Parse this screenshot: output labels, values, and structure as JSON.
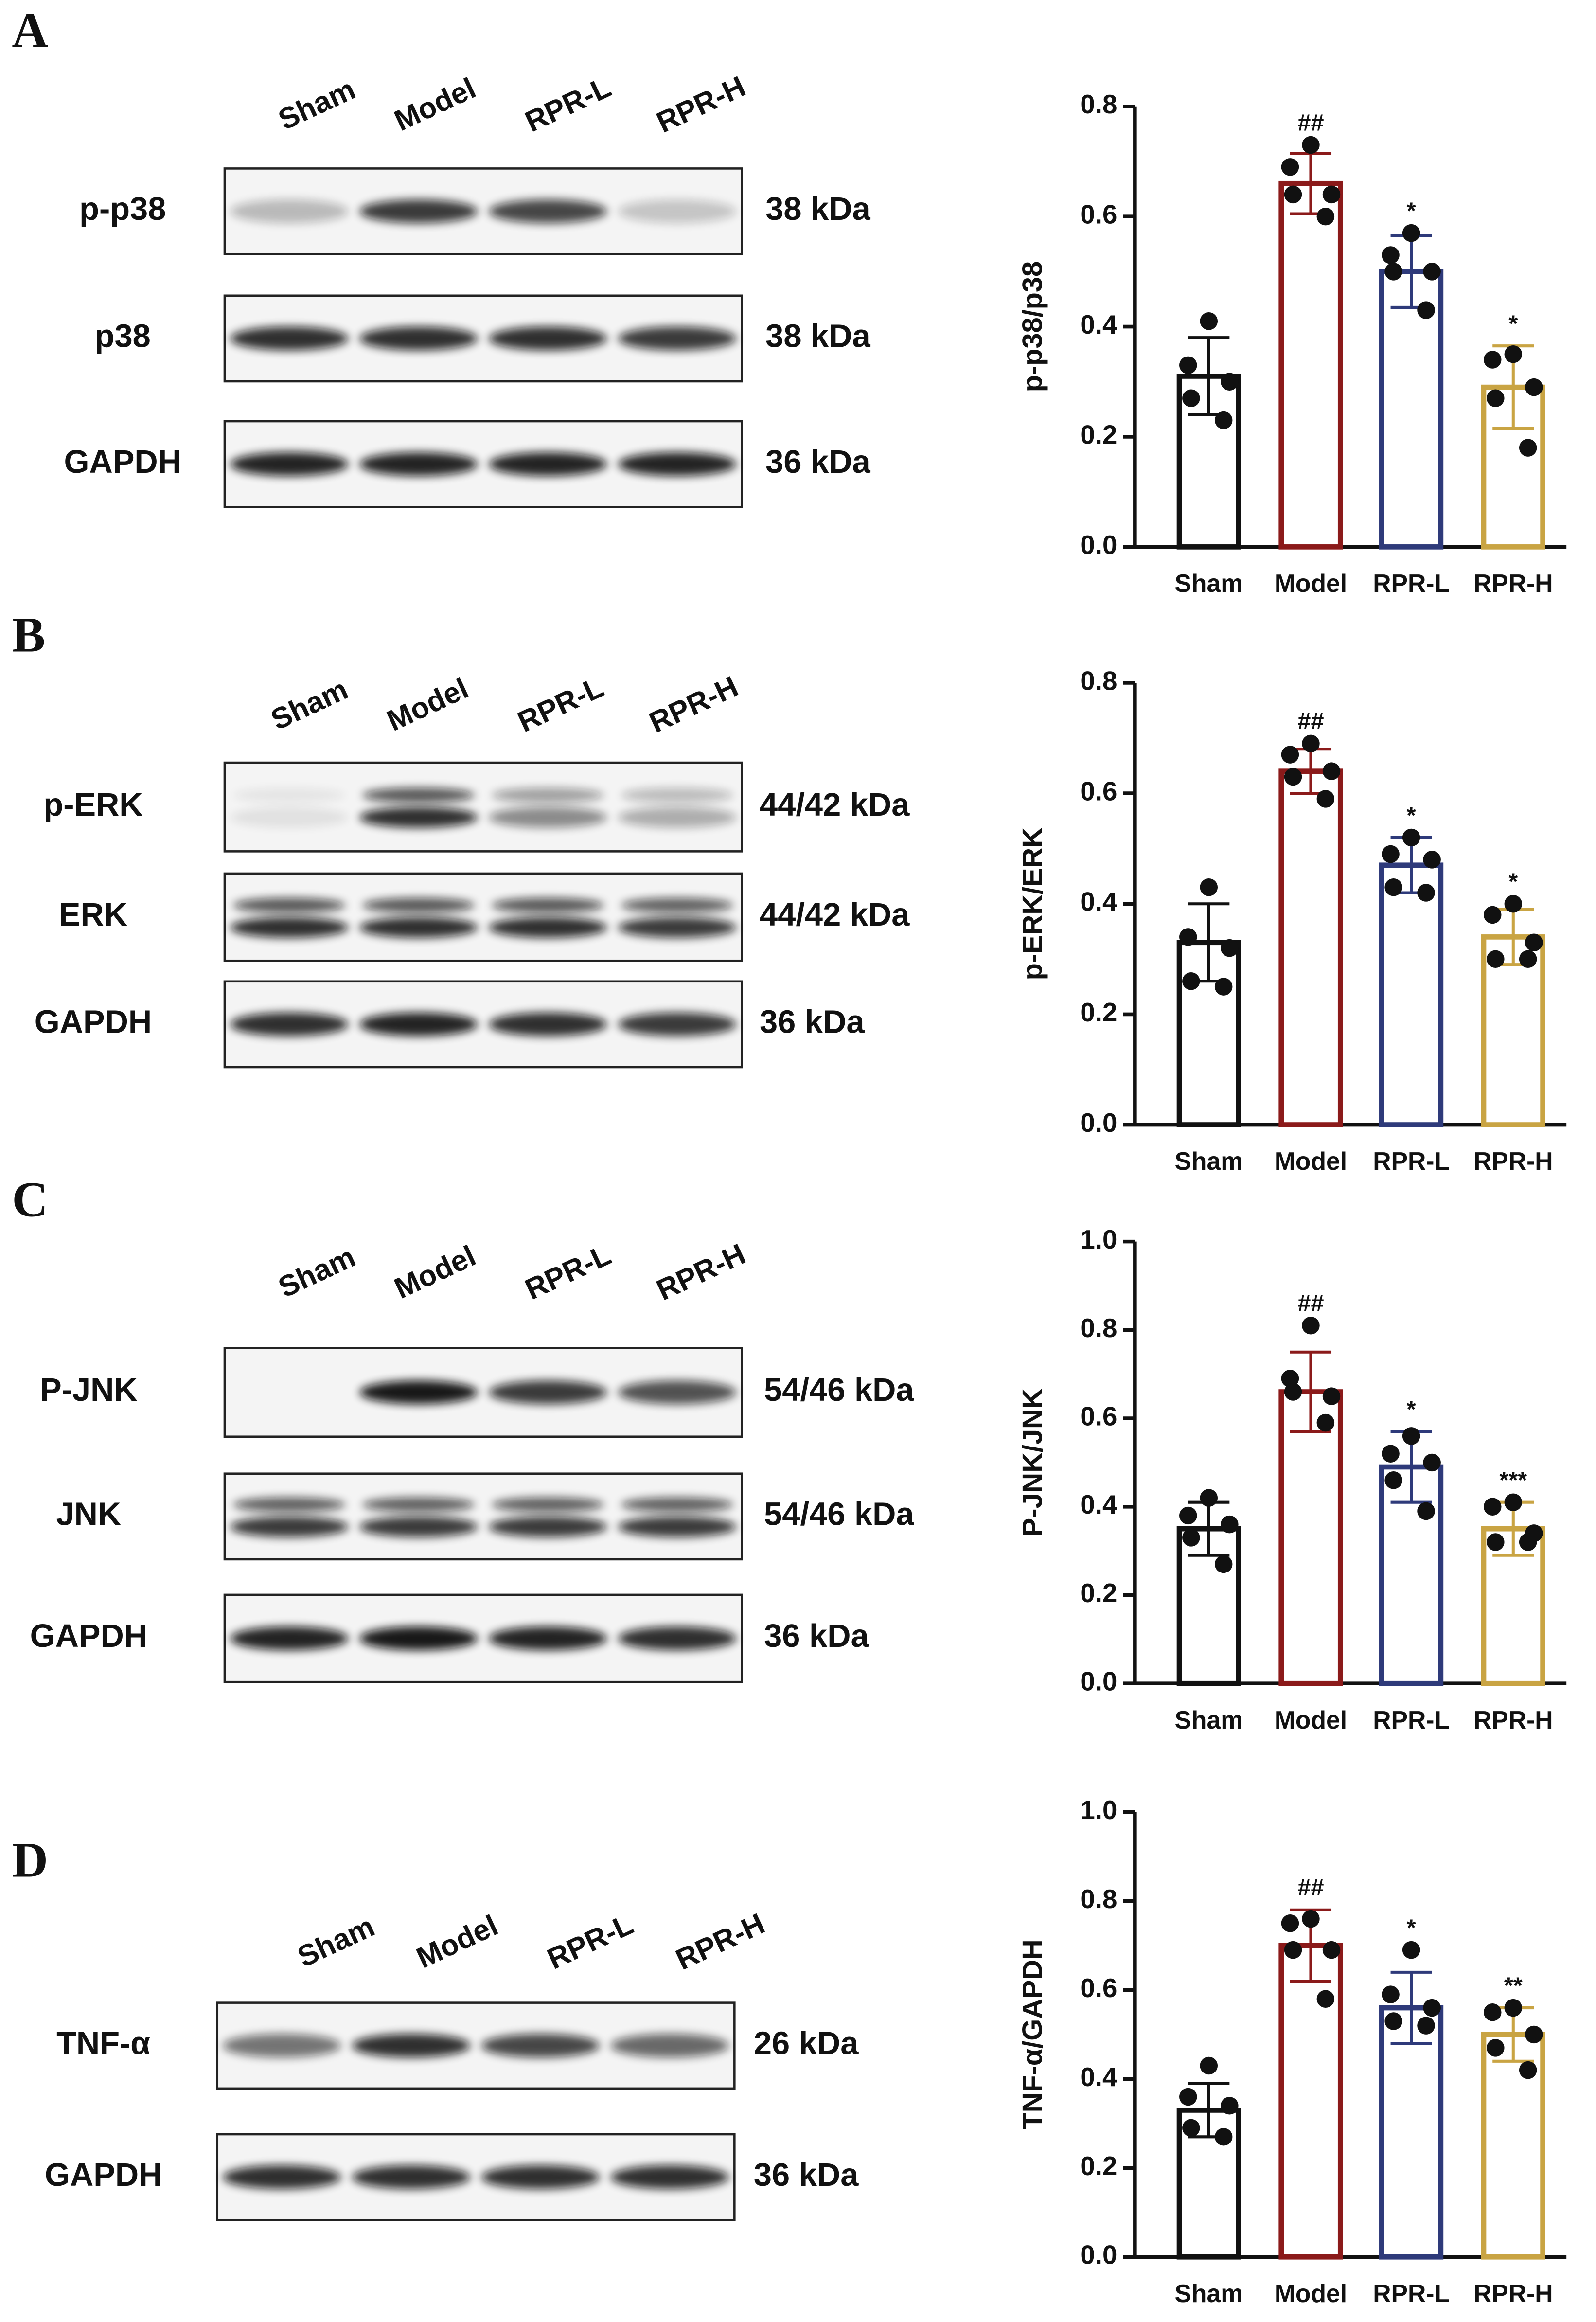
{
  "blots": [
    {
      "panel": "A",
      "lanes": [
        "Sham",
        "Model",
        "RPR-L",
        "RPR-H"
      ],
      "rows": [
        {
          "label": "p-p38",
          "size": "38 kDa"
        },
        {
          "label": "p38",
          "size": "38 kDa"
        },
        {
          "label": "GAPDH",
          "size": "36 kDa"
        }
      ]
    },
    {
      "panel": "B",
      "lanes": [
        "Sham",
        "Model",
        "RPR-L",
        "RPR-H"
      ],
      "rows": [
        {
          "label": "p-ERK",
          "size": "44/42 kDa"
        },
        {
          "label": "ERK",
          "size": "44/42 kDa"
        },
        {
          "label": "GAPDH",
          "size": "36 kDa"
        }
      ]
    },
    {
      "panel": "C",
      "lanes": [
        "Sham",
        "Model",
        "RPR-L",
        "RPR-H"
      ],
      "rows": [
        {
          "label": "P-JNK",
          "size": "54/46 kDa"
        },
        {
          "label": "JNK",
          "size": "54/46 kDa"
        },
        {
          "label": "GAPDH",
          "size": "36 kDa"
        }
      ]
    },
    {
      "panel": "D",
      "lanes": [
        "Sham",
        "Model",
        "RPR-L",
        "RPR-H"
      ],
      "rows": [
        {
          "label": "TNF-α",
          "size": "26 kDa"
        },
        {
          "label": "GAPDH",
          "size": "36 kDa"
        }
      ]
    }
  ],
  "chart_data": [
    {
      "type": "bar",
      "y_label": "p-p38/p38",
      "categories": [
        "Sham",
        "Model",
        "RPR-L",
        "RPR-H"
      ],
      "colors": [
        "#111111",
        "#8b1a1a",
        "#2e3a7a",
        "#c9a443"
      ],
      "values": [
        0.31,
        0.66,
        0.5,
        0.29
      ],
      "errors": [
        0.07,
        0.055,
        0.065,
        0.075
      ],
      "points": [
        [
          0.41,
          0.33,
          0.3,
          0.27,
          0.23
        ],
        [
          0.73,
          0.69,
          0.64,
          0.64,
          0.6
        ],
        [
          0.57,
          0.53,
          0.5,
          0.5,
          0.43
        ],
        [
          0.35,
          0.34,
          0.29,
          0.27,
          0.18
        ]
      ],
      "annotations": [
        null,
        "##",
        "*",
        "*"
      ],
      "ylim": [
        0,
        0.8
      ],
      "yticks": [
        {
          "value": 0,
          "label": "0.0"
        },
        0.2,
        0.4,
        0.6,
        0.8
      ]
    },
    {
      "type": "bar",
      "y_label": "p-ERK/ERK",
      "categories": [
        "Sham",
        "Model",
        "RPR-L",
        "RPR-H"
      ],
      "colors": [
        "#111111",
        "#8b1a1a",
        "#2e3a7a",
        "#c9a443"
      ],
      "values": [
        0.33,
        0.64,
        0.47,
        0.34
      ],
      "errors": [
        0.07,
        0.04,
        0.05,
        0.05
      ],
      "points": [
        [
          0.43,
          0.34,
          0.32,
          0.26,
          0.25
        ],
        [
          0.69,
          0.67,
          0.64,
          0.63,
          0.59
        ],
        [
          0.52,
          0.49,
          0.48,
          0.43,
          0.42
        ],
        [
          0.4,
          0.38,
          0.33,
          0.3,
          0.3
        ]
      ],
      "annotations": [
        null,
        "##",
        "*",
        "*"
      ],
      "ylim": [
        0,
        0.8
      ],
      "yticks": [
        {
          "value": 0,
          "label": "0.0"
        },
        0.2,
        0.4,
        0.6,
        0.8
      ]
    },
    {
      "type": "bar",
      "y_label": "P-JNK/JNK",
      "categories": [
        "Sham",
        "Model",
        "RPR-L",
        "RPR-H"
      ],
      "colors": [
        "#111111",
        "#8b1a1a",
        "#2e3a7a",
        "#c9a443"
      ],
      "values": [
        0.35,
        0.66,
        0.49,
        0.35
      ],
      "errors": [
        0.06,
        0.09,
        0.08,
        0.06
      ],
      "points": [
        [
          0.42,
          0.38,
          0.36,
          0.33,
          0.27
        ],
        [
          0.81,
          0.69,
          0.65,
          0.66,
          0.59
        ],
        [
          0.56,
          0.52,
          0.5,
          0.46,
          0.39
        ],
        [
          0.41,
          0.4,
          0.34,
          0.32,
          0.32
        ]
      ],
      "annotations": [
        null,
        "##",
        "*",
        "***"
      ],
      "ylim": [
        0,
        1
      ],
      "yticks": [
        {
          "value": 0,
          "label": "0.0"
        },
        0.2,
        0.4,
        0.6,
        0.8,
        {
          "value": 1,
          "label": "1.0"
        }
      ]
    },
    {
      "type": "bar",
      "y_label": "TNF-α/GAPDH",
      "categories": [
        "Sham",
        "Model",
        "RPR-L",
        "RPR-H"
      ],
      "colors": [
        "#111111",
        "#8b1a1a",
        "#2e3a7a",
        "#c9a443"
      ],
      "values": [
        0.33,
        0.7,
        0.56,
        0.5
      ],
      "errors": [
        0.06,
        0.08,
        0.08,
        0.06
      ],
      "points": [
        [
          0.43,
          0.36,
          0.34,
          0.29,
          0.27
        ],
        [
          0.76,
          0.75,
          0.69,
          0.69,
          0.58
        ],
        [
          0.69,
          0.59,
          0.56,
          0.53,
          0.52
        ],
        [
          0.56,
          0.55,
          0.5,
          0.47,
          0.42
        ]
      ],
      "annotations": [
        null,
        "##",
        "*",
        "**"
      ],
      "ylim": [
        0,
        1
      ],
      "yticks": [
        {
          "value": 0,
          "label": "0.0"
        },
        0.2,
        0.4,
        0.6,
        0.8,
        {
          "value": 1,
          "label": "1.0"
        }
      ]
    }
  ]
}
